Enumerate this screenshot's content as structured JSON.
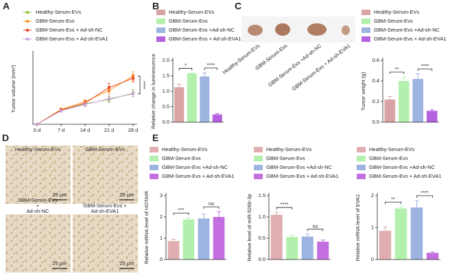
{
  "panel_labels": [
    "A",
    "B",
    "C",
    "D",
    "E"
  ],
  "tumor_photos": {
    "labels": [
      "Healthy-Serum-EVs",
      "GBM-Serum-Evs",
      "GBM-Serum-Evs +Ad-sh-NC",
      "GBM-Serum-Evs + Ad-sh-EVA1"
    ]
  },
  "micrographs": {
    "labels": [
      [
        "Healthy-Serum-EVs"
      ],
      [
        "GBM-Serum-EVs"
      ],
      [
        "GBM-Serum-EVs",
        "+",
        "Ad-sh-NC"
      ],
      [
        "GBM-Serum-Evs +",
        "Ad-sh-EVA1"
      ]
    ],
    "scale_bar": "25 μm"
  },
  "chart_data": [
    {
      "type": "line",
      "y_label": "Tumor volume (mm³)",
      "categories": [
        "0 d",
        "7 d",
        "14 d",
        "21 d",
        "28 d"
      ],
      "ylim": [
        0,
        1000
      ],
      "significance": [
        "****"
      ],
      "series": [
        {
          "name": "Healthy-Serum-EVs",
          "color": "#8cc63f",
          "values": [
            0,
            200,
            290,
            350,
            440
          ],
          "errors": [
            0,
            20,
            30,
            40,
            50
          ]
        },
        {
          "name": "GBM-Serum-Evs",
          "color": "#f7941d",
          "values": [
            0,
            210,
            320,
            480,
            680
          ],
          "errors": [
            0,
            20,
            30,
            50,
            60
          ]
        },
        {
          "name": "GBM-Serum-Evs + Ad-sh-NC",
          "color": "#e8431f",
          "values": [
            0,
            200,
            300,
            520,
            650
          ],
          "errors": [
            0,
            20,
            30,
            60,
            50
          ]
        },
        {
          "name": "GBM-Serum-Evs + Ad-sh-EVA1",
          "color": "#c9a0dc",
          "values": [
            0,
            190,
            280,
            360,
            430
          ],
          "errors": [
            0,
            20,
            30,
            40,
            40
          ]
        }
      ]
    },
    {
      "type": "bar",
      "y_label": "Relative change in luminescence",
      "categories": [
        "Healthy-Serum-EVs",
        "GBM-Serum-Evs",
        "GBM-Serum-Evs +Ad-sh-NC",
        "GBM-Serum-Evs + Ad-sh-EVA1"
      ],
      "colors": [
        "#d9a3a5",
        "#b4f0ad",
        "#9db4e0",
        "#b562de"
      ],
      "values": [
        1.13,
        1.58,
        1.48,
        0.25
      ],
      "errors": [
        0.1,
        0.01,
        0.12,
        0.03
      ],
      "ylim": [
        0,
        2
      ],
      "yticks": [
        {
          "value": 0,
          "label": "0.0"
        },
        0.5,
        {
          "value": 1,
          "label": "1.0"
        },
        1.5,
        {
          "value": 2,
          "label": "2.0"
        }
      ],
      "significance": [
        "*",
        "****"
      ]
    },
    {
      "type": "bar",
      "y_label": "Tumor weight (g)",
      "categories": [
        "Healthy-Serum-EVs",
        "GBM-Serum-Evs",
        "GBM-Serum-Evs +Ad-sh-NC",
        "GBM-Serum-Evs + Ad-sh-EVA1"
      ],
      "colors": [
        "#d9a3a5",
        "#b4f0ad",
        "#9db4e0",
        "#b562de"
      ],
      "values": [
        0.22,
        0.4,
        0.42,
        0.11
      ],
      "errors": [
        0.03,
        0.04,
        0.05,
        0.01
      ],
      "ylim": [
        0,
        0.6
      ],
      "yticks": [
        {
          "value": 0,
          "label": "0.0"
        },
        0.2,
        0.4,
        0.6
      ],
      "significance": [
        "**",
        "****"
      ]
    },
    {
      "type": "bar",
      "y_label": "Relative mRNA level of HOTAIR",
      "categories": [
        "Healthy-Serum-EVs",
        "GBM-Serum-Evs",
        "GBM-Serum-Evs +Ad-sh-NC",
        "GBM-Serum-Evs + Ad-sh-EVA1"
      ],
      "colors": [
        "#e0aeb0",
        "#b4f0ad",
        "#9db4e0",
        "#c46fe0"
      ],
      "values": [
        0.87,
        1.88,
        1.93,
        2.0
      ],
      "errors": [
        0.08,
        0.08,
        0.2,
        0.25
      ],
      "ylim": [
        0,
        3
      ],
      "yticks": [
        0,
        1,
        2,
        3
      ],
      "significance": [
        "***",
        "ns"
      ]
    },
    {
      "type": "bar",
      "y_label": "Relative level of miR-526b-3p",
      "categories": [
        "Healthy-Serum-EVs",
        "GBM-Serum-Evs",
        "GBM-Serum-Evs +Ad-sh-NC",
        "GBM-Serum-Evs + Ad-sh-EVA1"
      ],
      "colors": [
        "#e0aeb0",
        "#b4f0ad",
        "#9db4e0",
        "#c46fe0"
      ],
      "values": [
        1.05,
        0.53,
        0.54,
        0.42
      ],
      "errors": [
        0.06,
        0.04,
        0.06,
        0.04
      ],
      "ylim": [
        0,
        1.5
      ],
      "yticks": [
        {
          "value": 0,
          "label": "0.0"
        },
        0.5,
        {
          "value": 1,
          "label": "1.0"
        },
        1.5
      ],
      "significance": [
        "****",
        "ns"
      ]
    },
    {
      "type": "bar",
      "y_label": "Relative mRNA level of EVA1",
      "categories": [
        "Healthy-Serum-EVs",
        "GBM-Serum-Evs",
        "GBM-Serum-Evs +Ad-sh-NC",
        "GBM-Serum-Evs + Ad-sh-EVA1"
      ],
      "colors": [
        "#e0aeb0",
        "#b4f0ad",
        "#9db4e0",
        "#c46fe0"
      ],
      "values": [
        0.9,
        1.6,
        1.63,
        0.21
      ],
      "errors": [
        0.12,
        0.05,
        0.22,
        0.03
      ],
      "ylim": [
        0,
        2
      ],
      "yticks": [
        0,
        1,
        2
      ],
      "significance": [
        "**",
        "****"
      ]
    }
  ]
}
